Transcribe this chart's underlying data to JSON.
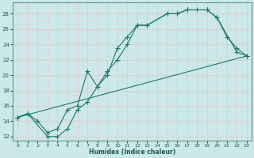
{
  "xlabel": "Humidex (Indice chaleur)",
  "bg_color": "#cde8e8",
  "grid_color": "#e8c8c8",
  "line_color": "#1a7a6e",
  "xlim": [
    -0.5,
    23.5
  ],
  "ylim": [
    11.5,
    29.5
  ],
  "xticks": [
    0,
    1,
    2,
    3,
    4,
    5,
    6,
    7,
    8,
    9,
    10,
    11,
    12,
    13,
    14,
    15,
    16,
    17,
    18,
    19,
    20,
    21,
    22,
    23
  ],
  "yticks": [
    12,
    14,
    16,
    18,
    20,
    22,
    24,
    26,
    28
  ],
  "curve1_x": [
    0,
    1,
    2,
    3,
    4,
    5,
    6,
    7,
    8,
    9,
    10,
    11,
    12,
    13,
    15,
    16,
    17,
    19,
    20,
    22,
    23
  ],
  "curve1_y": [
    14.5,
    15.0,
    14.0,
    12.5,
    13.0,
    15.5,
    16.0,
    20.5,
    18.5,
    20.0,
    23.5,
    25.0,
    26.5,
    26.5,
    28.0,
    28.0,
    28.5,
    28.5,
    27.5,
    23.0,
    22.5
  ],
  "curve2_x": [
    0,
    1,
    3,
    4,
    5,
    6,
    7,
    8,
    9,
    10,
    11,
    12,
    13,
    15,
    16,
    17,
    18,
    19,
    20,
    21,
    22,
    23
  ],
  "curve2_y": [
    14.5,
    15.0,
    12.0,
    12.0,
    13.0,
    15.5,
    16.5,
    18.5,
    20.5,
    22.0,
    24.0,
    26.5,
    26.5,
    28.0,
    28.0,
    28.5,
    28.5,
    28.5,
    27.5,
    25.0,
    23.5,
    22.5
  ],
  "curve3_x": [
    0,
    23
  ],
  "curve3_y": [
    14.5,
    22.5
  ]
}
